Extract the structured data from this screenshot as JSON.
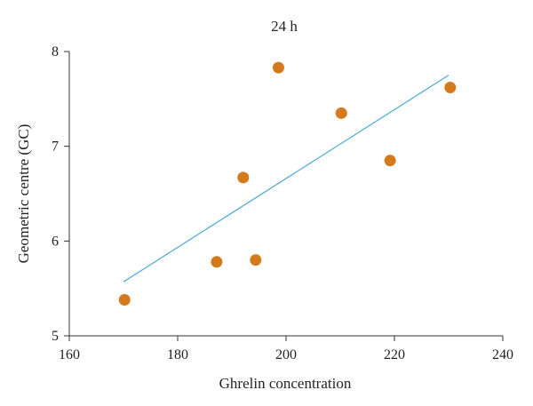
{
  "chart_data": {
    "type": "scatter",
    "title": "24 h",
    "xlabel": "Ghrelin concentration",
    "ylabel": "Geometric centre (GC)",
    "xlim": [
      160,
      240
    ],
    "ylim": [
      5,
      8
    ],
    "xticks": [
      160,
      180,
      200,
      220,
      240
    ],
    "yticks": [
      5,
      6,
      7,
      8
    ],
    "grid": false,
    "legend": "none",
    "series": [
      {
        "points": [
          {
            "x": 170.2,
            "y": 5.38
          },
          {
            "x": 187.2,
            "y": 5.78
          },
          {
            "x": 192.1,
            "y": 6.67
          },
          {
            "x": 194.4,
            "y": 5.8
          },
          {
            "x": 198.6,
            "y": 7.83
          },
          {
            "x": 210.2,
            "y": 7.35
          },
          {
            "x": 219.2,
            "y": 6.85
          },
          {
            "x": 230.3,
            "y": 7.62
          }
        ],
        "color": "#d47a1d"
      }
    ],
    "trendline": {
      "from": {
        "x": 170.0,
        "y": 5.57
      },
      "to": {
        "x": 230.0,
        "y": 7.75
      },
      "color": "#4aa8d8"
    }
  }
}
